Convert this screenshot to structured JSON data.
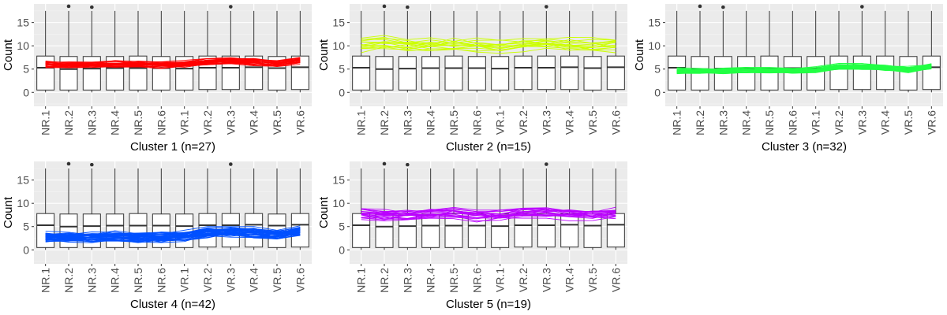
{
  "chart_data": [
    {
      "type": "box",
      "title": "",
      "xlabel": "Cluster 1 (n=27)",
      "ylabel": "Count",
      "ylim": [
        -3,
        19
      ],
      "yticks": [
        0,
        5,
        10,
        15
      ],
      "grid": true,
      "categories": [
        "NR.1",
        "NR.2",
        "NR.3",
        "NR.4",
        "NR.5",
        "NR.6",
        "VR.1",
        "VR.2",
        "VR.3",
        "VR.4",
        "VR.5",
        "VR.6"
      ],
      "box_stats": [
        {
          "min": 0,
          "q1": 0.5,
          "median": 5.3,
          "q3": 7.8,
          "max": 17.5
        },
        {
          "min": 0,
          "q1": 0.5,
          "median": 5.0,
          "q3": 7.7,
          "max": 17.5,
          "outliers": [
            18.5
          ]
        },
        {
          "min": 0,
          "q1": 0.5,
          "median": 5.1,
          "q3": 7.7,
          "max": 17.5,
          "outliers": [
            18.3
          ]
        },
        {
          "min": 0,
          "q1": 0.5,
          "median": 5.2,
          "q3": 7.7,
          "max": 17.5
        },
        {
          "min": 0,
          "q1": 0.5,
          "median": 5.2,
          "q3": 7.8,
          "max": 17.5
        },
        {
          "min": 0,
          "q1": 0.5,
          "median": 5.2,
          "q3": 7.7,
          "max": 17.5
        },
        {
          "min": 0,
          "q1": 0.5,
          "median": 5.1,
          "q3": 7.7,
          "max": 17.5
        },
        {
          "min": 0,
          "q1": 0.6,
          "median": 5.3,
          "q3": 7.8,
          "max": 17.5
        },
        {
          "min": 0,
          "q1": 0.6,
          "median": 5.3,
          "q3": 7.8,
          "max": 17.5,
          "outliers": [
            18.4
          ]
        },
        {
          "min": 0,
          "q1": 0.6,
          "median": 5.4,
          "q3": 7.8,
          "max": 17.5
        },
        {
          "min": 0,
          "q1": 0.5,
          "median": 5.2,
          "q3": 7.7,
          "max": 17.5
        },
        {
          "min": 0,
          "q1": 0.6,
          "median": 5.4,
          "q3": 7.8,
          "max": 17.5
        }
      ],
      "line_color": "#ff0000",
      "n_lines": 27,
      "profile_mean": [
        6.0,
        5.8,
        5.9,
        6.0,
        6.0,
        5.9,
        6.0,
        6.5,
        6.7,
        6.5,
        6.2,
        6.8
      ],
      "profile_spread": 0.6
    },
    {
      "type": "box",
      "title": "",
      "xlabel": "Cluster 2 (n=15)",
      "ylabel": "Count",
      "ylim": [
        -3,
        19
      ],
      "yticks": [
        0,
        5,
        10,
        15
      ],
      "grid": true,
      "categories": [
        "NR.1",
        "NR.2",
        "NR.3",
        "NR.4",
        "NR.5",
        "NR.6",
        "VR.1",
        "VR.2",
        "VR.3",
        "VR.4",
        "VR.5",
        "VR.6"
      ],
      "box_stats": [
        {
          "min": 0,
          "q1": 0.5,
          "median": 5.3,
          "q3": 7.8,
          "max": 17.5
        },
        {
          "min": 0,
          "q1": 0.5,
          "median": 5.0,
          "q3": 7.7,
          "max": 17.5,
          "outliers": [
            18.5
          ]
        },
        {
          "min": 0,
          "q1": 0.5,
          "median": 5.1,
          "q3": 7.7,
          "max": 17.5,
          "outliers": [
            18.3
          ]
        },
        {
          "min": 0,
          "q1": 0.5,
          "median": 5.2,
          "q3": 7.7,
          "max": 17.5
        },
        {
          "min": 0,
          "q1": 0.5,
          "median": 5.2,
          "q3": 7.8,
          "max": 17.5
        },
        {
          "min": 0,
          "q1": 0.5,
          "median": 5.2,
          "q3": 7.7,
          "max": 17.5
        },
        {
          "min": 0,
          "q1": 0.5,
          "median": 5.1,
          "q3": 7.7,
          "max": 17.5
        },
        {
          "min": 0,
          "q1": 0.6,
          "median": 5.3,
          "q3": 7.8,
          "max": 17.5
        },
        {
          "min": 0,
          "q1": 0.6,
          "median": 5.3,
          "q3": 7.8,
          "max": 17.5,
          "outliers": [
            18.4
          ]
        },
        {
          "min": 0,
          "q1": 0.6,
          "median": 5.4,
          "q3": 7.8,
          "max": 17.5
        },
        {
          "min": 0,
          "q1": 0.5,
          "median": 5.2,
          "q3": 7.7,
          "max": 17.5
        },
        {
          "min": 0,
          "q1": 0.6,
          "median": 5.4,
          "q3": 7.8,
          "max": 17.5
        }
      ],
      "line_color": "#ccff00",
      "n_lines": 15,
      "profile_mean": [
        10.3,
        10.5,
        10.2,
        10.0,
        10.3,
        10.1,
        10.0,
        10.4,
        10.5,
        10.2,
        10.0,
        10.2
      ],
      "profile_spread": 1.3
    },
    {
      "type": "box",
      "title": "",
      "xlabel": "Cluster 3 (n=32)",
      "ylabel": "Count",
      "ylim": [
        -3,
        19
      ],
      "yticks": [
        0,
        5,
        10,
        15
      ],
      "grid": true,
      "categories": [
        "NR.1",
        "NR.2",
        "NR.3",
        "NR.4",
        "NR.5",
        "NR.6",
        "VR.1",
        "VR.2",
        "VR.3",
        "VR.4",
        "VR.5",
        "VR.6"
      ],
      "box_stats": [
        {
          "min": 0,
          "q1": 0.5,
          "median": 5.3,
          "q3": 7.8,
          "max": 17.5
        },
        {
          "min": 0,
          "q1": 0.5,
          "median": 5.0,
          "q3": 7.7,
          "max": 17.5,
          "outliers": [
            18.5
          ]
        },
        {
          "min": 0,
          "q1": 0.5,
          "median": 5.1,
          "q3": 7.7,
          "max": 17.5,
          "outliers": [
            18.3
          ]
        },
        {
          "min": 0,
          "q1": 0.5,
          "median": 5.2,
          "q3": 7.7,
          "max": 17.5
        },
        {
          "min": 0,
          "q1": 0.5,
          "median": 5.2,
          "q3": 7.8,
          "max": 17.5
        },
        {
          "min": 0,
          "q1": 0.5,
          "median": 5.2,
          "q3": 7.7,
          "max": 17.5
        },
        {
          "min": 0,
          "q1": 0.5,
          "median": 5.1,
          "q3": 7.7,
          "max": 17.5
        },
        {
          "min": 0,
          "q1": 0.6,
          "median": 5.3,
          "q3": 7.8,
          "max": 17.5
        },
        {
          "min": 0,
          "q1": 0.6,
          "median": 5.3,
          "q3": 7.8,
          "max": 17.5,
          "outliers": [
            18.4
          ]
        },
        {
          "min": 0,
          "q1": 0.6,
          "median": 5.4,
          "q3": 7.8,
          "max": 17.5
        },
        {
          "min": 0,
          "q1": 0.5,
          "median": 5.2,
          "q3": 7.7,
          "max": 17.5
        },
        {
          "min": 0,
          "q1": 0.6,
          "median": 5.4,
          "q3": 7.8,
          "max": 17.5
        }
      ],
      "line_color": "#22ff44",
      "n_lines": 32,
      "profile_mean": [
        4.6,
        4.5,
        4.6,
        4.7,
        4.7,
        4.6,
        4.8,
        5.5,
        5.5,
        5.3,
        4.9,
        5.6
      ],
      "profile_spread": 0.5
    },
    {
      "type": "box",
      "title": "",
      "xlabel": "Cluster 4 (n=42)",
      "ylabel": "Count",
      "ylim": [
        -3,
        19
      ],
      "yticks": [
        0,
        5,
        10,
        15
      ],
      "grid": true,
      "categories": [
        "NR.1",
        "NR.2",
        "NR.3",
        "NR.4",
        "NR.5",
        "NR.6",
        "VR.1",
        "VR.2",
        "VR.3",
        "VR.4",
        "VR.5",
        "VR.6"
      ],
      "box_stats": [
        {
          "min": 0,
          "q1": 0.5,
          "median": 5.3,
          "q3": 7.8,
          "max": 17.5
        },
        {
          "min": 0,
          "q1": 0.5,
          "median": 5.0,
          "q3": 7.7,
          "max": 17.5,
          "outliers": [
            18.5
          ]
        },
        {
          "min": 0,
          "q1": 0.5,
          "median": 5.1,
          "q3": 7.7,
          "max": 17.5,
          "outliers": [
            18.3
          ]
        },
        {
          "min": 0,
          "q1": 0.5,
          "median": 5.2,
          "q3": 7.7,
          "max": 17.5
        },
        {
          "min": 0,
          "q1": 0.5,
          "median": 5.2,
          "q3": 7.8,
          "max": 17.5
        },
        {
          "min": 0,
          "q1": 0.5,
          "median": 5.2,
          "q3": 7.7,
          "max": 17.5
        },
        {
          "min": 0,
          "q1": 0.5,
          "median": 5.1,
          "q3": 7.7,
          "max": 17.5
        },
        {
          "min": 0,
          "q1": 0.6,
          "median": 5.3,
          "q3": 7.8,
          "max": 17.5
        },
        {
          "min": 0,
          "q1": 0.6,
          "median": 5.3,
          "q3": 7.8,
          "max": 17.5,
          "outliers": [
            18.4
          ]
        },
        {
          "min": 0,
          "q1": 0.6,
          "median": 5.4,
          "q3": 7.8,
          "max": 17.5
        },
        {
          "min": 0,
          "q1": 0.5,
          "median": 5.2,
          "q3": 7.7,
          "max": 17.5
        },
        {
          "min": 0,
          "q1": 0.6,
          "median": 5.4,
          "q3": 7.8,
          "max": 17.5
        }
      ],
      "line_color": "#0050ff",
      "n_lines": 42,
      "profile_mean": [
        2.9,
        2.8,
        2.8,
        2.9,
        2.8,
        2.8,
        3.0,
        3.8,
        4.0,
        3.8,
        3.2,
        4.2
      ],
      "profile_spread": 0.9
    },
    {
      "type": "box",
      "title": "",
      "xlabel": "Cluster 5 (n=19)",
      "ylabel": "Count",
      "ylim": [
        -3,
        19
      ],
      "yticks": [
        0,
        5,
        10,
        15
      ],
      "grid": true,
      "categories": [
        "NR.1",
        "NR.2",
        "NR.3",
        "NR.4",
        "NR.5",
        "NR.6",
        "VR.1",
        "VR.2",
        "VR.3",
        "VR.4",
        "VR.5",
        "VR.6"
      ],
      "box_stats": [
        {
          "min": 0,
          "q1": 0.5,
          "median": 5.3,
          "q3": 7.8,
          "max": 17.5
        },
        {
          "min": 0,
          "q1": 0.5,
          "median": 5.0,
          "q3": 7.7,
          "max": 17.5,
          "outliers": [
            18.5
          ]
        },
        {
          "min": 0,
          "q1": 0.5,
          "median": 5.1,
          "q3": 7.7,
          "max": 17.5,
          "outliers": [
            18.3
          ]
        },
        {
          "min": 0,
          "q1": 0.5,
          "median": 5.2,
          "q3": 7.7,
          "max": 17.5
        },
        {
          "min": 0,
          "q1": 0.5,
          "median": 5.2,
          "q3": 7.8,
          "max": 17.5
        },
        {
          "min": 0,
          "q1": 0.5,
          "median": 5.2,
          "q3": 7.7,
          "max": 17.5
        },
        {
          "min": 0,
          "q1": 0.5,
          "median": 5.1,
          "q3": 7.7,
          "max": 17.5
        },
        {
          "min": 0,
          "q1": 0.6,
          "median": 5.3,
          "q3": 7.8,
          "max": 17.5
        },
        {
          "min": 0,
          "q1": 0.6,
          "median": 5.3,
          "q3": 7.8,
          "max": 17.5,
          "outliers": [
            18.4
          ]
        },
        {
          "min": 0,
          "q1": 0.6,
          "median": 5.4,
          "q3": 7.8,
          "max": 17.5
        },
        {
          "min": 0,
          "q1": 0.5,
          "median": 5.2,
          "q3": 7.7,
          "max": 17.5
        },
        {
          "min": 0,
          "q1": 0.6,
          "median": 5.4,
          "q3": 7.8,
          "max": 17.5
        }
      ],
      "line_color": "#bb00ff",
      "n_lines": 19,
      "profile_mean": [
        7.6,
        7.3,
        7.4,
        7.6,
        7.8,
        7.4,
        7.4,
        7.8,
        7.9,
        7.6,
        7.5,
        7.9
      ],
      "profile_spread": 1.0
    }
  ]
}
